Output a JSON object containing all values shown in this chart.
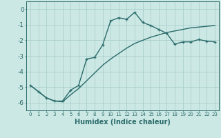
{
  "xlabel": "Humidex (Indice chaleur)",
  "bg_color": "#cce8e4",
  "line_color": "#2a6b6b",
  "grid_color": "#aacfcb",
  "curve1_x": [
    0,
    1,
    2,
    3,
    4,
    5,
    6,
    7,
    8,
    9,
    10,
    11,
    12,
    13,
    14,
    15,
    16,
    17,
    18,
    19,
    20,
    21,
    22,
    23
  ],
  "curve1_y": [
    -4.9,
    -5.3,
    -5.7,
    -5.9,
    -5.9,
    -5.2,
    -4.9,
    -3.2,
    -3.1,
    -2.3,
    -0.75,
    -0.55,
    -0.65,
    -0.2,
    -0.85,
    -1.05,
    -1.3,
    -1.55,
    -2.25,
    -2.1,
    -2.1,
    -1.95,
    -2.05,
    -2.1
  ],
  "curve2_x": [
    0,
    1,
    2,
    3,
    4,
    5,
    6,
    7,
    8,
    9,
    10,
    11,
    12,
    13,
    14,
    15,
    16,
    17,
    18,
    19,
    20,
    21,
    22,
    23
  ],
  "curve2_y": [
    -4.9,
    -5.3,
    -5.7,
    -5.9,
    -5.95,
    -5.5,
    -5.1,
    -4.6,
    -4.1,
    -3.6,
    -3.2,
    -2.85,
    -2.5,
    -2.2,
    -2.0,
    -1.8,
    -1.65,
    -1.5,
    -1.4,
    -1.3,
    -1.2,
    -1.15,
    -1.1,
    -1.05
  ],
  "xlim": [
    -0.5,
    23.5
  ],
  "ylim": [
    -6.5,
    0.5
  ],
  "yticks": [
    0,
    -1,
    -2,
    -3,
    -4,
    -5,
    -6
  ],
  "ytick_labels": [
    "0",
    "-1",
    "-2",
    "-3",
    "-4",
    "-5",
    "-6"
  ],
  "xtick_labels": [
    "0",
    "1",
    "2",
    "3",
    "4",
    "5",
    "6",
    "7",
    "8",
    "9",
    "10",
    "11",
    "12",
    "13",
    "14",
    "15",
    "16",
    "17",
    "18",
    "19",
    "20",
    "21",
    "22",
    "23"
  ],
  "marker": "+",
  "marker_size": 3.5,
  "line_width": 1.0
}
